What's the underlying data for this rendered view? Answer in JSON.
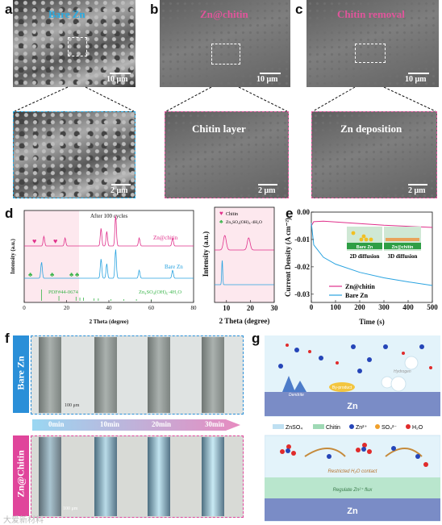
{
  "panels": {
    "a": "a",
    "b": "b",
    "c": "c",
    "d": "d",
    "e": "e",
    "f": "f",
    "g": "g"
  },
  "sem": {
    "a_title": "Bare Zn",
    "b_title": "Zn@chitin",
    "c_title": "Chitin removal",
    "scale_10": "10 μm",
    "scale_2": "2 μm",
    "b_detail": "Chitin layer",
    "c_detail": "Zn deposition",
    "colors": {
      "a": "#29abe2",
      "b": "#e0559b",
      "c": "#e0559b"
    }
  },
  "xrd": {
    "after_cycles": "After 100 cycles",
    "ylabel": "Intensity (a.u.)",
    "xlabel": "2 Theta (degree)",
    "label_zn_chitin": "Zn@chitin",
    "label_bare": "Bare Zn",
    "label_pdf": "PDF#44-0674",
    "label_zso": "Zn₄SO₄(OH)₆·4H₂O",
    "legend_chitin": "Chitin",
    "legend_zso": "Zn₄SO₄(OH)₆·4H₂O",
    "colors": {
      "zn_chitin": "#e0308b",
      "bare": "#29a3e0",
      "green": "#39b54a"
    }
  },
  "chart_data": [
    {
      "type": "line",
      "xlabel": "2 Theta (degree)",
      "ylabel": "Intensity (a.u.)",
      "xlim": [
        0,
        80
      ],
      "xticks": [
        0,
        20,
        40,
        60,
        80
      ],
      "series": [
        {
          "name": "Zn@chitin",
          "peaks": [
            [
              9.3,
              0.3
            ],
            [
              19.3,
              0.25
            ],
            [
              36.3,
              0.55
            ],
            [
              39.0,
              0.45
            ],
            [
              43.2,
              0.95
            ],
            [
              54.3,
              0.25
            ],
            [
              70.1,
              0.25
            ]
          ]
        },
        {
          "name": "Bare Zn",
          "peaks": [
            [
              8.2,
              0.5
            ],
            [
              36.3,
              0.6
            ],
            [
              39.0,
              0.45
            ],
            [
              43.2,
              0.9
            ],
            [
              54.3,
              0.25
            ],
            [
              70.1,
              0.25
            ]
          ]
        }
      ]
    },
    {
      "type": "line",
      "xlabel": "2 Theta (degree)",
      "ylabel": "Intensity (a.u.)",
      "xlim": [
        5,
        30
      ],
      "xticks": [
        10,
        20,
        30
      ]
    },
    {
      "type": "line",
      "xlabel": "Time (s)",
      "ylabel": "Current Density (A cm⁻²)",
      "xlim": [
        0,
        500
      ],
      "ylim": [
        -0.033,
        0.0
      ],
      "xticks": [
        0,
        100,
        200,
        300,
        400,
        500
      ],
      "yticks": [
        0.0,
        -0.01,
        -0.02,
        -0.03
      ],
      "series": [
        {
          "name": "Zn@chitin",
          "x": [
            0,
            10,
            50,
            100,
            200,
            300,
            400,
            500
          ],
          "y": [
            -0.005,
            -0.0035,
            -0.0033,
            -0.0036,
            -0.0042,
            -0.0048,
            -0.0052,
            -0.0056
          ]
        },
        {
          "name": "Bare Zn",
          "x": [
            0,
            10,
            50,
            100,
            200,
            300,
            400,
            500
          ],
          "y": [
            -0.004,
            -0.012,
            -0.0165,
            -0.019,
            -0.022,
            -0.024,
            -0.0255,
            -0.0268
          ]
        }
      ]
    }
  ],
  "e_inset": {
    "bare": "Bare Zn",
    "coated": "Zn@chitin",
    "d2": "2D diffusion",
    "d3": "3D diffusion"
  },
  "f": {
    "bare_label": "Bare Zn",
    "chitin_label": "Zn@Chitin",
    "times": [
      "0min",
      "10min",
      "20min",
      "30min"
    ],
    "scale": "100 μm",
    "colors": {
      "bare": "#2a8fd8",
      "chitin": "#e0459b"
    }
  },
  "g": {
    "zn": "Zn",
    "dendrite": "Dendrite",
    "byproduct": "By-product",
    "hydrogen": "Hydrogen",
    "restricted": "Restricted H₂O contact",
    "regulate": "Regulate Zn²⁺ flux",
    "legend": [
      "ZnSO₄",
      "Chitin",
      "Zn²⁺",
      "SO₄²⁻",
      "H₂O"
    ]
  },
  "watermark": "大爱新材料"
}
